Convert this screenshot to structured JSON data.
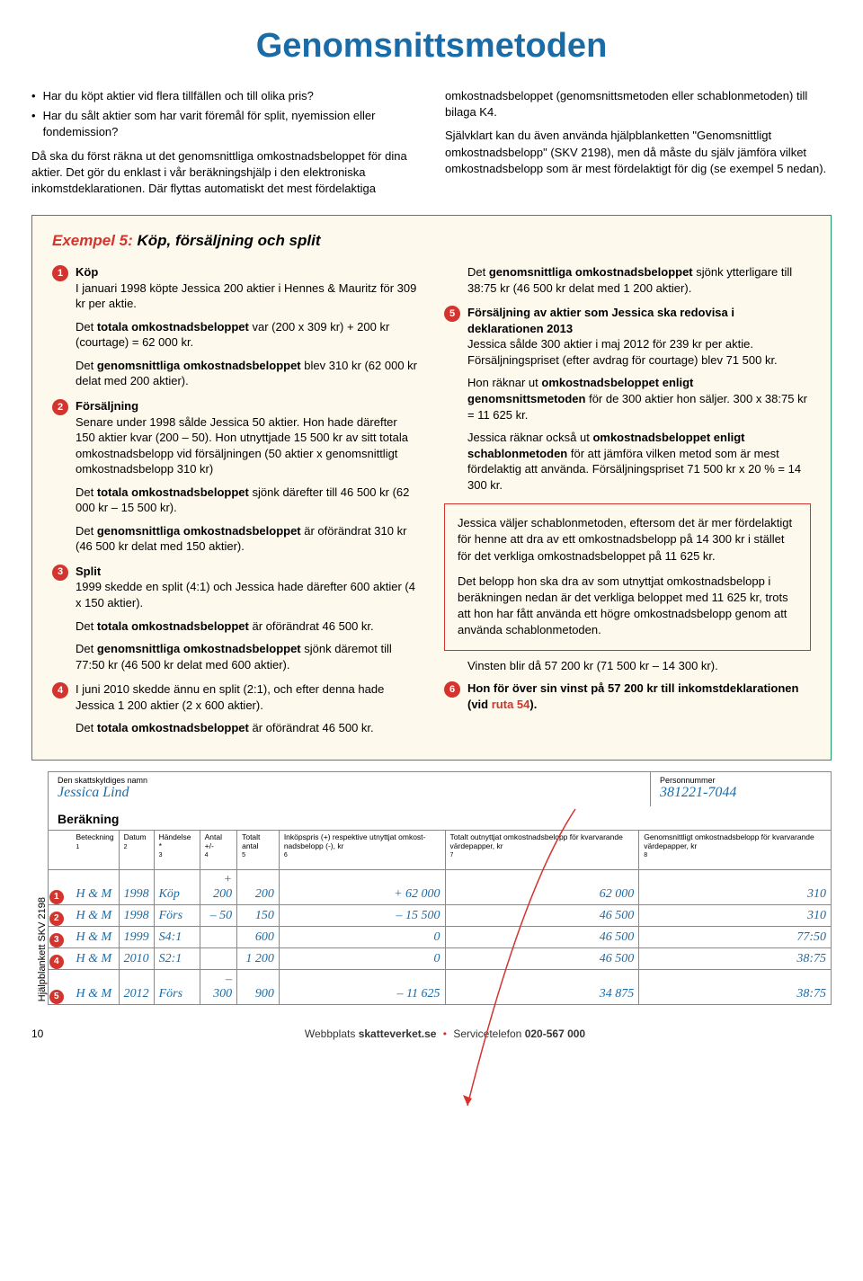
{
  "title": "Genomsnittsmetoden",
  "intro": {
    "b1": "Har du köpt aktier vid flera tillfällen och till olika pris?",
    "b2": "Har du sålt aktier som har varit föremål för split, nyemission eller fondemission?",
    "p1": "Då ska du först räkna ut det genomsnittliga omkostnadsbeloppet för dina aktier. Det gör du enklast i vår beräkningshjälp i den elektroniska inkomstdeklarationen. Där flyttas automatiskt det mest fördelaktiga",
    "r1": "omkostnadsbeloppet (genomsnittsmetoden eller schablonmetoden) till bilaga K4.",
    "r2": "Självklart kan du även använda hjälpblanketten \"Genomsnittligt omkostnadsbelopp\" (SKV 2198), men då måste du själv jämföra vilket omkostnadsbelopp som är mest fördelaktigt för dig (se exempel 5 nedan)."
  },
  "example": {
    "label": "Exempel 5:",
    "subtitle": "Köp, försäljning och split",
    "items": {
      "i1": {
        "h": "Köp",
        "p1": "I januari 1998 köpte Jessica 200 aktier i Hennes & Mauritz för 309 kr per aktie.",
        "p2_a": "Det ",
        "p2_b": "totala omkostnadsbeloppet",
        "p2_c": " var (200 x 309 kr) + 200 kr (courtage) = 62 000 kr.",
        "p3_a": "Det ",
        "p3_b": "genomsnittliga omkostnadsbeloppet",
        "p3_c": " blev 310 kr (62 000 kr delat med 200 aktier)."
      },
      "i2": {
        "h": "Försäljning",
        "p1": "Senare under 1998 sålde Jessica 50 aktier. Hon hade därefter 150 aktier kvar (200 – 50). Hon utnyttjade 15 500 kr av sitt totala omkostnadsbelopp vid försäljningen (50 aktier x genomsnittligt omkostnadsbelopp 310 kr)",
        "p2_a": "Det ",
        "p2_b": "totala omkostnadsbeloppet",
        "p2_c": " sjönk därefter till 46 500 kr (62 000 kr – 15 500 kr).",
        "p3_a": "Det ",
        "p3_b": "genomsnittliga omkostnadsbeloppet",
        "p3_c": " är oförändrat 310 kr (46 500 kr delat med 150 aktier)."
      },
      "i3": {
        "h": "Split",
        "p1": "1999 skedde en split (4:1) och Jessica hade därefter 600 aktier (4 x 150 aktier).",
        "p2_a": "Det ",
        "p2_b": "totala omkostnadsbeloppet",
        "p2_c": " är oförändrat 46 500 kr.",
        "p3_a": "Det ",
        "p3_b": "genomsnittliga omkostnadsbeloppet",
        "p3_c": " sjönk däremot till 77:50 kr (46 500 kr delat med 600 aktier)."
      },
      "i4": {
        "p1": "I juni 2010 skedde ännu en split (2:1), och efter denna hade Jessica 1 200 aktier (2 x 600 aktier).",
        "p2_a": "Det ",
        "p2_b": "totala omkostnadsbeloppet",
        "p2_c": " är oförändrat 46 500 kr."
      },
      "rtop_a": "Det ",
      "rtop_b": "genomsnittliga omkostnadsbeloppet",
      "rtop_c": " sjönk ytterligare till 38:75 kr (46 500 kr delat med 1 200 aktier).",
      "i5": {
        "h": "Försäljning av aktier som Jessica ska redovisa i deklarationen 2013",
        "p1": "Jessica sålde 300 aktier i maj 2012 för 239 kr per aktie. Försäljningspriset (efter avdrag för courtage) blev 71 500 kr.",
        "p2_a": "Hon räknar ut ",
        "p2_b": "omkostnadsbeloppet enligt genomsnittsmetoden",
        "p2_c": " för de 300 aktier hon säljer. 300 x 38:75 kr = 11 625 kr.",
        "p3_a": "Jessica räknar också ut ",
        "p3_b": "omkostnadsbeloppet enligt schablonmetoden",
        "p3_c": " för att jämföra vilken metod som är mest fördelaktig att använda. Försäljningspriset 71 500 kr x 20 % = 14 300 kr."
      },
      "callout": {
        "p1": "Jessica väljer schablonmetoden, eftersom det är mer fördelaktigt för henne att dra av ett omkostnadsbelopp på 14 300 kr i stället för det verkliga omkostnadsbeloppet på 11 625 kr.",
        "p2": "Det belopp hon ska dra av som utnyttjat omkostnadsbelopp i beräkningen nedan är det verkliga beloppet med 11 625 kr, trots att hon har fått använda ett högre omkostnadsbelopp genom att använda schablonmetoden."
      },
      "vinst": "Vinsten blir då 57 200 kr (71 500 kr – 14 300 kr).",
      "i6_a": "Hon för över sin vinst på 57 200 kr till inkomstdeklarationen (vid ",
      "i6_b": "ruta 54",
      "i6_c": ")."
    }
  },
  "form": {
    "vlabel": "Hjälpblankett SKV 2198",
    "name_lbl": "Den skattskyldiges namn",
    "name_val": "Jessica Lind",
    "pn_lbl": "Personnummer",
    "pn_val": "381221-7044",
    "calc_title": "Beräkning",
    "headers": {
      "c1": "Beteckning",
      "c2": "Datum",
      "c3": "Händelse *",
      "c4": "Antal +/-",
      "c5": "Totalt antal",
      "c6": "Inköpspris (+) respektive utnyttjat omkost­nadsbelopp (-), kr",
      "c7": "Totalt outnyttjat omkostnadsbelopp för kvarvarande värdepapper, kr",
      "c8": "Genomsnittligt omkostnadsbelopp för kvarvarande värdepapper, kr"
    },
    "colnums": {
      "n1": "1",
      "n2": "2",
      "n3": "3",
      "n4": "4",
      "n5": "5",
      "n6": "6",
      "n7": "7",
      "n8": "8"
    },
    "rows": [
      {
        "n": "1",
        "c1": "H & M",
        "c2": "1998",
        "c3": "Köp",
        "c4": "+ 200",
        "c5": "200",
        "c6": "+ 62 000",
        "c7": "62 000",
        "c8": "310"
      },
      {
        "n": "2",
        "c1": "H & M",
        "c2": "1998",
        "c3": "Förs",
        "c4": "– 50",
        "c5": "150",
        "c6": "– 15 500",
        "c7": "46 500",
        "c8": "310"
      },
      {
        "n": "3",
        "c1": "H & M",
        "c2": "1999",
        "c3": "S4:1",
        "c4": "",
        "c5": "600",
        "c6": "0",
        "c7": "46 500",
        "c8": "77:50"
      },
      {
        "n": "4",
        "c1": "H & M",
        "c2": "2010",
        "c3": "S2:1",
        "c4": "",
        "c5": "1 200",
        "c6": "0",
        "c7": "46 500",
        "c8": "38:75"
      },
      {
        "n": "5",
        "c1": "H & M",
        "c2": "2012",
        "c3": "Förs",
        "c4": "– 300",
        "c5": "900",
        "c6": "– 11 625",
        "c7": "34 875",
        "c8": "38:75"
      }
    ]
  },
  "footer": {
    "page": "10",
    "web_l": "Webbplats ",
    "web_b": "skatteverket.se",
    "tel_l": "Servicetelefon ",
    "tel_b": "020-567 000"
  }
}
